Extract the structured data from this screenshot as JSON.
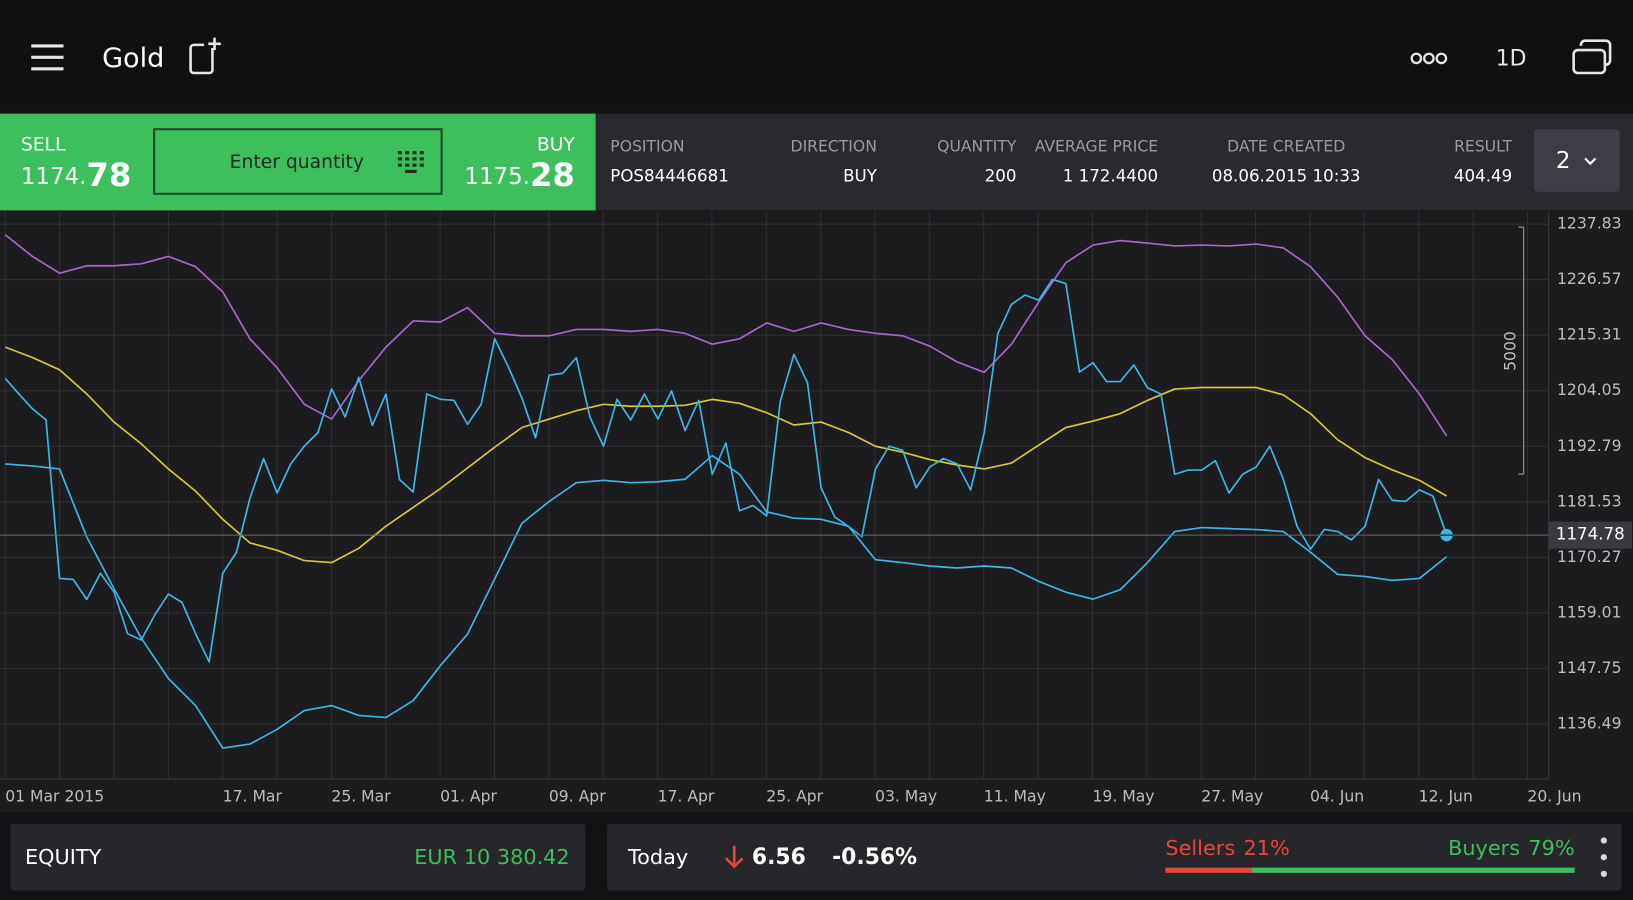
{
  "header": {
    "title": "Gold",
    "timeframe": "1D"
  },
  "trade": {
    "sell": {
      "label": "SELL",
      "price_main": "1174.",
      "price_pips": "78"
    },
    "buy": {
      "label": "BUY",
      "price_main": "1175.",
      "price_pips": "28"
    },
    "quantity_placeholder": "Enter quantity"
  },
  "position": {
    "columns": [
      "POSITION",
      "DIRECTION",
      "QUANTITY",
      "AVERAGE PRICE",
      "DATE CREATED",
      "RESULT"
    ],
    "row": [
      "POS84446681",
      "BUY",
      "200",
      "1 172.4400",
      "08.06.2015 10:33",
      "404.49"
    ],
    "count": "2"
  },
  "chart_data": {
    "type": "line",
    "xtick_labels": [
      "01 Mar 2015",
      null,
      "17. Mar",
      "25. Mar",
      "01. Apr",
      "09. Apr",
      "17. Apr",
      "25. Apr",
      "03. May",
      "11. May",
      "19. May",
      "27. May",
      "04. Jun",
      "12. Jun",
      "20. Jun"
    ],
    "ylim": [
      1125.3,
      1240.4
    ],
    "yticks": [
      1237.83,
      1226.57,
      1215.31,
      1204.05,
      1192.79,
      1181.53,
      1170.27,
      1159.01,
      1147.75,
      1136.49
    ],
    "grid": true,
    "series": [
      {
        "color": "#a865cc",
        "values": [
          1235.7,
          1231.3,
          1227.9,
          1229.4,
          1229.4,
          1229.8,
          1231.3,
          1229.2,
          1224.1,
          1214.6,
          1208.7,
          1201.3,
          1198.3,
          1206.1,
          1212.9,
          1218.2,
          1218.0,
          1220.9,
          1215.7,
          1215.2,
          1215.2,
          1216.5,
          1216.5,
          1216.1,
          1216.5,
          1215.7,
          1213.5,
          1214.6,
          1217.8,
          1216.1,
          1217.8,
          1216.5,
          1215.7,
          1215.2,
          1213.1,
          1209.9,
          1207.8,
          1213.5,
          1222.0,
          1230.0,
          1233.6,
          1234.5,
          1234.0,
          1233.4,
          1233.6,
          1233.4,
          1233.8,
          1233.0,
          1229.2,
          1223.0,
          1215.2,
          1210.4,
          1203.4,
          1194.9
        ]
      },
      {
        "color": "#d9c636",
        "values": [
          1212.9,
          1210.8,
          1208.3,
          1203.4,
          1197.7,
          1193.3,
          1188.2,
          1183.7,
          1178.0,
          1173.2,
          1171.7,
          1169.6,
          1169.2,
          1172.1,
          1176.6,
          1180.4,
          1184.2,
          1188.4,
          1192.6,
          1196.6,
          1198.3,
          1200.0,
          1201.3,
          1200.9,
          1200.9,
          1201.1,
          1202.3,
          1201.5,
          1199.6,
          1197.1,
          1197.7,
          1195.6,
          1192.8,
          1191.6,
          1190.1,
          1189.0,
          1188.2,
          1189.4,
          1193.0,
          1196.6,
          1197.9,
          1199.4,
          1202.1,
          1204.4,
          1204.7,
          1204.7,
          1204.7,
          1203.2,
          1199.4,
          1194.1,
          1190.5,
          1188.0,
          1185.9,
          1182.7
        ]
      },
      {
        "color": "#3eb5e4",
        "values": [
          1189.2,
          1188.8,
          1188.2,
          1174.4,
          1163.9,
          1153.9,
          1145.7,
          1140.2,
          1131.6,
          1132.4,
          1135.4,
          1139.2,
          1140.2,
          1138.2,
          1137.8,
          1141.2,
          1148.3,
          1154.7,
          1165.9,
          1177.2,
          1181.6,
          1185.4,
          1185.9,
          1185.4,
          1185.6,
          1186.1,
          1190.9,
          1187.1,
          1179.5,
          1178.2,
          1178.0,
          1176.6,
          1169.8,
          1169.2,
          1168.5,
          1168.1,
          1168.5,
          1168.1,
          1165.4,
          1163.2,
          1161.8,
          1163.7,
          1169.2,
          1175.5,
          1176.3,
          1176.1,
          1175.9,
          1175.5,
          1171.3,
          1166.8,
          1166.4,
          1165.6,
          1166.0,
          1170.4
        ]
      },
      {
        "color": "#3eb5e4",
        "values": [
          1206.56,
          1203.39,
          1200.43,
          1198.11,
          1165.99,
          1165.78,
          1161.76,
          1167.04,
          1163.24,
          1154.79,
          1153.52,
          1158.59,
          1162.82,
          1161.13,
          1154.79,
          1149.08,
          1167.04,
          1171.27,
          1182.26,
          1190.29,
          1183.31,
          1189.23,
          1192.82,
          1195.57,
          1204.44,
          1198.74,
          1206.77,
          1197.05,
          1203.39,
          1186.06,
          1183.53,
          1203.39,
          1202.33,
          1202.12,
          1197.26,
          1201.28,
          1214.59,
          1208.88,
          1202.54,
          1194.51,
          1207.19,
          1207.61,
          1210.78,
          1198.74,
          1192.82,
          1202.33,
          1198.11,
          1203.39,
          1198.32,
          1204.02,
          1195.99,
          1202.12,
          1187.12,
          1193.46,
          1179.72,
          1180.78,
          1178.67,
          1201.91,
          1211.42,
          1205.71,
          1184.37,
          1178.45,
          1176.55,
          1174.44,
          1188.17,
          1192.82,
          1191.98,
          1184.37,
          1188.6,
          1190.29,
          1189.23,
          1183.95,
          1195.57,
          1215.64,
          1221.56,
          1223.46,
          1222.41,
          1226.63,
          1225.79,
          1207.83,
          1209.73,
          1205.92,
          1205.92,
          1209.3,
          1204.66,
          1203.39,
          1187.12,
          1187.96,
          1187.96,
          1189.86,
          1183.31,
          1187.12,
          1188.6,
          1192.82,
          1186.06,
          1176.55,
          1171.9,
          1175.92,
          1175.5,
          1173.81,
          1176.55,
          1186.06,
          1181.83,
          1181.62,
          1183.95,
          1182.68,
          1174.78
        ]
      }
    ],
    "last_price": 1174.78,
    "volume_scale": 5000
  },
  "footer": {
    "equity_label": "EQUITY",
    "equity_value": "EUR 10 380.42",
    "today_label": "Today",
    "change": "6.56",
    "change_pct": "-0.56%",
    "sellers": {
      "label": "Sellers",
      "value": 21,
      "value_label": "21%"
    },
    "buyers": {
      "label": "Buyers",
      "value": 79,
      "value_label": "79%"
    }
  }
}
